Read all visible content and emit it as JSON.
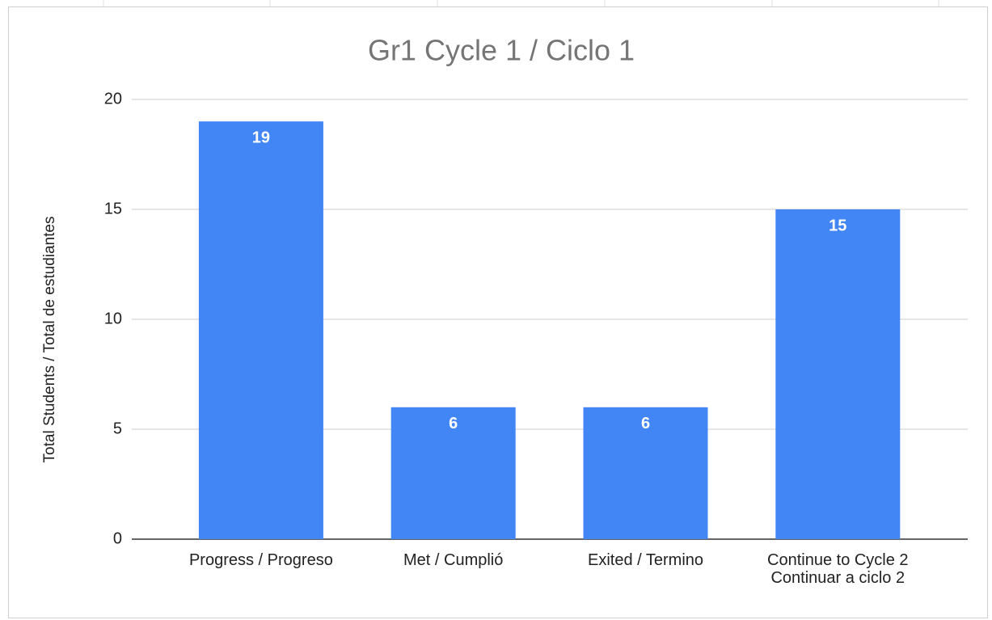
{
  "chart_data": {
    "type": "bar",
    "title": "Gr1 Cycle 1 / Ciclo 1",
    "y_label": "Total Students / Total de estudiantes",
    "categories": [
      "Progress / Progreso",
      "Met / Cumplió",
      "Exited / Termino",
      "Continue to Cycle 2\nContinuar a ciclo 2"
    ],
    "values": [
      19,
      6,
      6,
      15
    ],
    "color": "#4285f4",
    "ylim": [
      0,
      20
    ],
    "yticks": [
      0,
      5,
      10,
      15,
      20
    ],
    "grid": true
  }
}
